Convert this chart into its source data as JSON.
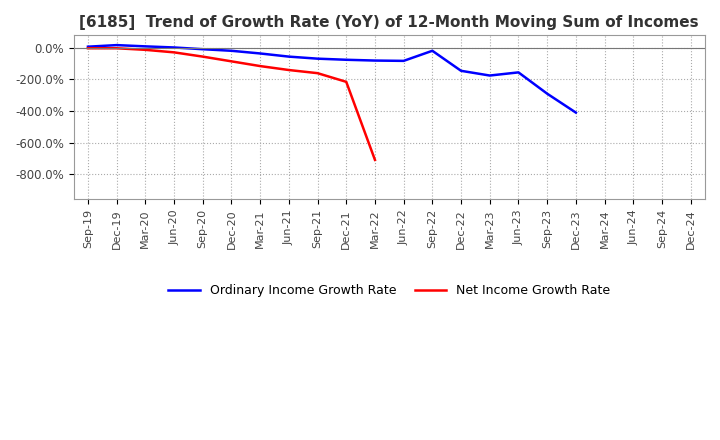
{
  "title": "[6185]  Trend of Growth Rate (YoY) of 12-Month Moving Sum of Incomes",
  "title_fontsize": 11,
  "background_color": "#ffffff",
  "grid_color": "#aaaaaa",
  "legend_labels": [
    "Ordinary Income Growth Rate",
    "Net Income Growth Rate"
  ],
  "legend_colors": [
    "#0000ff",
    "#ff0000"
  ],
  "x_labels": [
    "Sep-19",
    "Dec-19",
    "Mar-20",
    "Jun-20",
    "Sep-20",
    "Dec-20",
    "Mar-21",
    "Jun-21",
    "Sep-21",
    "Dec-21",
    "Mar-22",
    "Jun-22",
    "Sep-22",
    "Dec-22",
    "Mar-23",
    "Jun-23",
    "Sep-23",
    "Dec-23",
    "Mar-24",
    "Jun-24",
    "Sep-24",
    "Dec-24"
  ],
  "ylim": [
    -960,
    80
  ],
  "yticks": [
    0,
    -200,
    -400,
    -600,
    -800
  ],
  "ytick_labels": [
    "0.0%",
    "-200.0%",
    "-400.0%",
    "-600.0%",
    "-800.0%"
  ],
  "ordinary_income": [
    8,
    18,
    10,
    3,
    -8,
    -18,
    -35,
    -55,
    -68,
    -75,
    -80,
    -82,
    -18,
    -145,
    -175,
    -155,
    -290,
    -410,
    null,
    null,
    null,
    null
  ],
  "net_income": [
    -2,
    -2,
    -12,
    -28,
    -55,
    -85,
    -115,
    -140,
    -160,
    -215,
    -710,
    null,
    null,
    null,
    null,
    null,
    null,
    null,
    null,
    null,
    null,
    null
  ]
}
